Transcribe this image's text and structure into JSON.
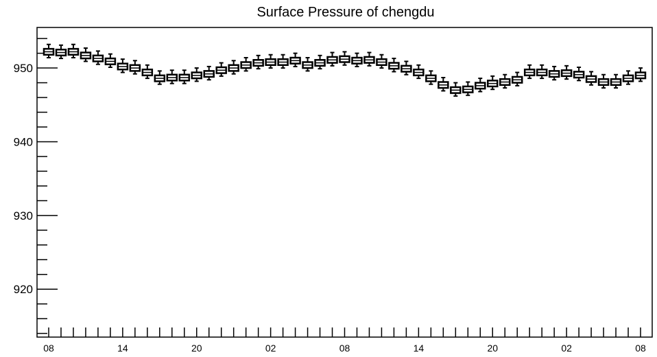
{
  "chart_data": {
    "type": "box",
    "title": "Surface Pressure of chengdu",
    "xlabel": "",
    "ylabel": "",
    "ylim": [
      913.5,
      955.5
    ],
    "y_major_ticks": [
      920,
      930,
      940,
      950
    ],
    "y_tick_labels": [
      "920",
      "930",
      "940",
      "950"
    ],
    "x_tick_labels": [
      "08",
      "14",
      "20",
      "02",
      "08",
      "14",
      "20",
      "02",
      "08"
    ],
    "x_tick_label_index": [
      0,
      6,
      12,
      18,
      24,
      30,
      36,
      42,
      48
    ],
    "grid": false,
    "legend": "none",
    "series": [
      {
        "median": [
          952.2,
          952.1,
          952.2,
          951.7,
          951.3,
          950.9,
          950.2,
          950.0,
          949.4,
          948.6,
          948.7,
          948.7,
          949.0,
          949.2,
          949.7,
          950.0,
          950.4,
          950.7,
          950.8,
          950.8,
          951.0,
          950.4,
          950.7,
          951.1,
          951.2,
          951.0,
          951.1,
          950.8,
          950.3,
          949.9,
          949.4,
          948.6,
          947.7,
          947.0,
          947.1,
          947.6,
          947.9,
          948.1,
          948.4,
          949.4,
          949.4,
          949.2,
          949.3,
          949.1,
          948.5,
          948.1,
          948.1,
          948.6,
          949.0
        ],
        "q1": [
          951.8,
          951.7,
          951.8,
          951.3,
          950.9,
          950.5,
          949.8,
          949.6,
          949.0,
          948.2,
          948.3,
          948.3,
          948.6,
          948.8,
          949.3,
          949.6,
          950.0,
          950.3,
          950.4,
          950.4,
          950.6,
          950.0,
          950.3,
          950.7,
          950.8,
          950.6,
          950.7,
          950.4,
          949.9,
          949.5,
          949.0,
          948.2,
          947.3,
          946.6,
          946.7,
          947.2,
          947.5,
          947.7,
          948.0,
          949.0,
          949.0,
          948.8,
          948.9,
          948.7,
          948.1,
          947.7,
          947.7,
          948.2,
          948.6
        ],
        "q3": [
          952.6,
          952.5,
          952.6,
          952.1,
          951.7,
          951.3,
          950.6,
          950.4,
          949.8,
          949.0,
          949.1,
          949.1,
          949.4,
          949.6,
          950.1,
          950.4,
          950.8,
          951.1,
          951.2,
          951.2,
          951.4,
          950.8,
          951.1,
          951.5,
          951.6,
          951.4,
          951.5,
          951.2,
          950.7,
          950.3,
          949.8,
          949.0,
          948.1,
          947.4,
          947.5,
          948.0,
          948.3,
          948.5,
          948.8,
          949.8,
          949.8,
          949.6,
          949.7,
          949.5,
          948.9,
          948.5,
          948.5,
          949.0,
          949.4
        ],
        "min": [
          951.4,
          951.3,
          951.4,
          950.9,
          950.5,
          950.1,
          949.4,
          949.2,
          948.6,
          947.8,
          947.9,
          947.9,
          948.2,
          948.4,
          948.9,
          949.2,
          949.6,
          949.9,
          950.0,
          950.0,
          950.2,
          949.6,
          949.9,
          950.3,
          950.4,
          950.2,
          950.3,
          950.0,
          949.5,
          949.1,
          948.6,
          947.8,
          946.9,
          946.2,
          946.3,
          946.8,
          947.1,
          947.3,
          947.6,
          948.6,
          948.6,
          948.4,
          948.5,
          948.3,
          947.7,
          947.3,
          947.3,
          947.8,
          948.2
        ],
        "max": [
          953.2,
          953.1,
          953.2,
          952.7,
          952.3,
          951.9,
          951.2,
          951.0,
          950.4,
          949.6,
          949.7,
          949.7,
          950.0,
          950.2,
          950.7,
          951.0,
          951.4,
          951.7,
          951.8,
          951.8,
          952.0,
          951.4,
          951.7,
          952.1,
          952.2,
          952.0,
          952.1,
          951.8,
          951.3,
          950.9,
          950.4,
          949.6,
          948.7,
          948.0,
          948.1,
          948.6,
          948.9,
          949.1,
          949.4,
          950.4,
          950.4,
          950.2,
          950.3,
          950.1,
          949.5,
          949.1,
          949.1,
          949.6,
          950.0
        ]
      }
    ]
  }
}
